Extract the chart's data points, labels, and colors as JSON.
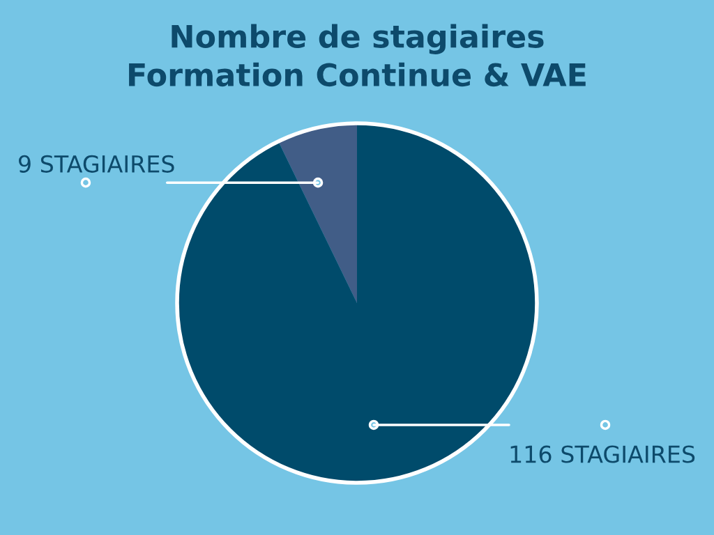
{
  "chart_data": {
    "type": "pie",
    "title": "Nombre de stagiaires\nFormation Continue & VAE",
    "categories": [
      null,
      null
    ],
    "values": [
      9,
      116
    ],
    "colors": [
      "#415d87",
      "#004b6b"
    ],
    "value_labels": [
      "9 STAGIAIRES",
      "116 STAGIAIRES"
    ],
    "legend": false
  }
}
